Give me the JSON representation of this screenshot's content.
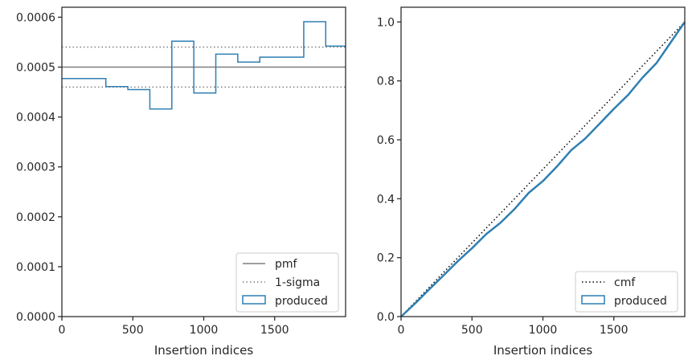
{
  "colors": {
    "produced": "#2f7fb3",
    "pmf": "#7f7f7f",
    "sigma": "#7f7f7f",
    "cmf": "#000000",
    "axes": "#262626"
  },
  "chart_data": [
    {
      "type": "line",
      "xlabel": "Insertion indices",
      "ylabel": "",
      "xlim": [
        0,
        2000
      ],
      "ylim": [
        0,
        0.00062
      ],
      "xticks": [
        0,
        500,
        1000,
        1500
      ],
      "xtick_labels": [
        "0",
        "500",
        "1000",
        "1500"
      ],
      "yticks": [
        0,
        0.0001,
        0.0002,
        0.0003,
        0.0004,
        0.0005,
        0.0006
      ],
      "ytick_labels": [
        "0.0000",
        "0.0001",
        "0.0002",
        "0.0003",
        "0.0004",
        "0.0005",
        "0.0006"
      ],
      "legend_position": "lower-right",
      "pmf": {
        "name": "pmf",
        "value": 0.0005
      },
      "sigma": {
        "name": "1-sigma",
        "values": [
          0.00046,
          0.00054
        ]
      },
      "produced": {
        "name": "produced",
        "bin_edges": [
          0,
          310,
          465,
          620,
          775,
          930,
          1085,
          1240,
          1395,
          1550,
          1705,
          1860,
          2000
        ],
        "values": [
          0.000477,
          0.000461,
          0.000455,
          0.000416,
          0.000552,
          0.000448,
          0.000526,
          0.00051,
          0.00052,
          0.00052,
          0.000591,
          0.000542
        ]
      }
    },
    {
      "type": "line",
      "xlabel": "Insertion indices",
      "ylabel": "",
      "xlim": [
        0,
        2000
      ],
      "ylim": [
        0,
        1.05
      ],
      "xticks": [
        0,
        500,
        1000,
        1500
      ],
      "xtick_labels": [
        "0",
        "500",
        "1000",
        "1500"
      ],
      "yticks": [
        0,
        0.2,
        0.4,
        0.6,
        0.8,
        1.0
      ],
      "ytick_labels": [
        "0.0",
        "0.2",
        "0.4",
        "0.6",
        "0.8",
        "1.0"
      ],
      "legend_position": "lower-right",
      "cmf": {
        "name": "cmf",
        "x": [
          0,
          2000
        ],
        "y": [
          0,
          1
        ]
      },
      "produced": {
        "name": "produced",
        "x": [
          0,
          100,
          200,
          300,
          400,
          500,
          600,
          700,
          800,
          900,
          1000,
          1100,
          1200,
          1300,
          1400,
          1500,
          1600,
          1700,
          1800,
          1900,
          2000
        ],
        "y": [
          0,
          0.045,
          0.093,
          0.14,
          0.188,
          0.232,
          0.28,
          0.318,
          0.365,
          0.42,
          0.46,
          0.51,
          0.565,
          0.605,
          0.655,
          0.705,
          0.752,
          0.81,
          0.86,
          0.93,
          1.0
        ]
      }
    }
  ]
}
